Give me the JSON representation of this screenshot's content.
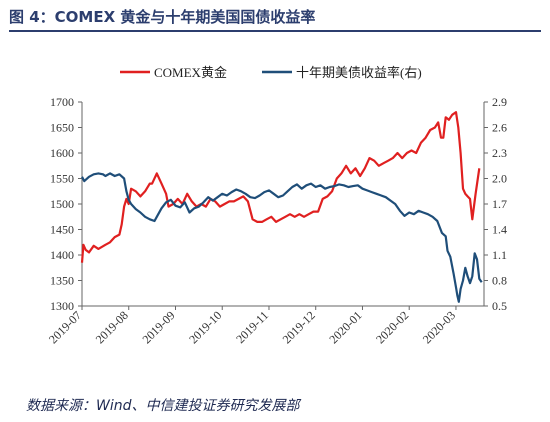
{
  "figure": {
    "title": "图 4：COMEX 黄金与十年期美国国债收益率",
    "source": "数据来源：Wind、中信建投证券研究发展部"
  },
  "colors": {
    "gold": "#e02020",
    "treasury": "#1f4e79",
    "header": "#2c3e6e"
  },
  "chart_data": {
    "type": "line",
    "legend_position": "top",
    "grid": false,
    "x_labels": [
      "2019-07",
      "2019-08",
      "2019-09",
      "2019-10",
      "2019-11",
      "2019-12",
      "2020-01",
      "2020-02",
      "2020-03"
    ],
    "y_left": {
      "ylim": [
        1300,
        1700
      ],
      "ticks": [
        1300,
        1350,
        1400,
        1450,
        1500,
        1550,
        1600,
        1650,
        1700
      ]
    },
    "y_right": {
      "ylim": [
        0.5,
        2.9
      ],
      "ticks": [
        0.5,
        0.8,
        1.1,
        1.4,
        1.7,
        2.0,
        2.3,
        2.6,
        2.9
      ]
    },
    "series": [
      {
        "name": "COMEX黄金",
        "axis": "left",
        "color": "#e02020",
        "points": [
          [
            0,
            1385
          ],
          [
            0.03,
            1420
          ],
          [
            0.08,
            1410
          ],
          [
            0.15,
            1405
          ],
          [
            0.25,
            1418
          ],
          [
            0.35,
            1412
          ],
          [
            0.5,
            1420
          ],
          [
            0.6,
            1425
          ],
          [
            0.7,
            1435
          ],
          [
            0.8,
            1440
          ],
          [
            0.85,
            1460
          ],
          [
            0.9,
            1495
          ],
          [
            0.95,
            1510
          ],
          [
            1.0,
            1500
          ],
          [
            1.05,
            1530
          ],
          [
            1.15,
            1525
          ],
          [
            1.25,
            1515
          ],
          [
            1.35,
            1525
          ],
          [
            1.45,
            1540
          ],
          [
            1.5,
            1540
          ],
          [
            1.6,
            1560
          ],
          [
            1.7,
            1540
          ],
          [
            1.8,
            1520
          ],
          [
            1.85,
            1495
          ],
          [
            1.95,
            1500
          ],
          [
            2.05,
            1510
          ],
          [
            2.15,
            1500
          ],
          [
            2.25,
            1520
          ],
          [
            2.35,
            1505
          ],
          [
            2.45,
            1495
          ],
          [
            2.55,
            1500
          ],
          [
            2.65,
            1495
          ],
          [
            2.75,
            1510
          ],
          [
            2.85,
            1505
          ],
          [
            2.95,
            1495
          ],
          [
            3.05,
            1500
          ],
          [
            3.15,
            1505
          ],
          [
            3.25,
            1505
          ],
          [
            3.35,
            1510
          ],
          [
            3.45,
            1515
          ],
          [
            3.55,
            1505
          ],
          [
            3.65,
            1470
          ],
          [
            3.75,
            1465
          ],
          [
            3.85,
            1465
          ],
          [
            3.95,
            1470
          ],
          [
            4.05,
            1475
          ],
          [
            4.15,
            1465
          ],
          [
            4.25,
            1470
          ],
          [
            4.35,
            1475
          ],
          [
            4.45,
            1480
          ],
          [
            4.55,
            1475
          ],
          [
            4.65,
            1480
          ],
          [
            4.75,
            1475
          ],
          [
            4.85,
            1480
          ],
          [
            4.95,
            1485
          ],
          [
            5.05,
            1485
          ],
          [
            5.15,
            1510
          ],
          [
            5.25,
            1515
          ],
          [
            5.35,
            1525
          ],
          [
            5.45,
            1550
          ],
          [
            5.55,
            1560
          ],
          [
            5.65,
            1575
          ],
          [
            5.75,
            1560
          ],
          [
            5.85,
            1570
          ],
          [
            5.95,
            1555
          ],
          [
            6.05,
            1570
          ],
          [
            6.15,
            1590
          ],
          [
            6.25,
            1585
          ],
          [
            6.35,
            1575
          ],
          [
            6.45,
            1580
          ],
          [
            6.55,
            1585
          ],
          [
            6.65,
            1590
          ],
          [
            6.75,
            1600
          ],
          [
            6.85,
            1590
          ],
          [
            6.95,
            1600
          ],
          [
            7.05,
            1605
          ],
          [
            7.15,
            1600
          ],
          [
            7.25,
            1620
          ],
          [
            7.35,
            1630
          ],
          [
            7.45,
            1645
          ],
          [
            7.55,
            1650
          ],
          [
            7.62,
            1660
          ],
          [
            7.68,
            1630
          ],
          [
            7.73,
            1630
          ],
          [
            7.78,
            1670
          ],
          [
            7.85,
            1665
          ],
          [
            7.92,
            1675
          ],
          [
            8.0,
            1680
          ],
          [
            8.05,
            1650
          ],
          [
            8.1,
            1600
          ],
          [
            8.15,
            1530
          ],
          [
            8.2,
            1520
          ],
          [
            8.25,
            1515
          ],
          [
            8.3,
            1510
          ],
          [
            8.35,
            1470
          ],
          [
            8.42,
            1520
          ],
          [
            8.5,
            1570
          ]
        ]
      },
      {
        "name": "十年期美债收益率(右)",
        "axis": "right",
        "color": "#1f4e79",
        "points": [
          [
            0,
            2.02
          ],
          [
            0.05,
            1.97
          ],
          [
            0.15,
            2.02
          ],
          [
            0.25,
            2.05
          ],
          [
            0.35,
            2.06
          ],
          [
            0.45,
            2.05
          ],
          [
            0.5,
            2.03
          ],
          [
            0.6,
            2.06
          ],
          [
            0.7,
            2.03
          ],
          [
            0.8,
            2.05
          ],
          [
            0.9,
            2.0
          ],
          [
            0.95,
            1.85
          ],
          [
            1.0,
            1.75
          ],
          [
            1.05,
            1.7
          ],
          [
            1.15,
            1.64
          ],
          [
            1.25,
            1.6
          ],
          [
            1.35,
            1.55
          ],
          [
            1.45,
            1.52
          ],
          [
            1.55,
            1.5
          ],
          [
            1.6,
            1.55
          ],
          [
            1.7,
            1.65
          ],
          [
            1.8,
            1.72
          ],
          [
            1.9,
            1.75
          ],
          [
            2.0,
            1.68
          ],
          [
            2.1,
            1.66
          ],
          [
            2.2,
            1.72
          ],
          [
            2.3,
            1.6
          ],
          [
            2.4,
            1.65
          ],
          [
            2.5,
            1.67
          ],
          [
            2.6,
            1.72
          ],
          [
            2.7,
            1.78
          ],
          [
            2.8,
            1.74
          ],
          [
            2.9,
            1.78
          ],
          [
            3.0,
            1.82
          ],
          [
            3.1,
            1.8
          ],
          [
            3.2,
            1.84
          ],
          [
            3.3,
            1.87
          ],
          [
            3.4,
            1.85
          ],
          [
            3.5,
            1.82
          ],
          [
            3.6,
            1.78
          ],
          [
            3.7,
            1.77
          ],
          [
            3.8,
            1.8
          ],
          [
            3.9,
            1.84
          ],
          [
            4.0,
            1.86
          ],
          [
            4.1,
            1.82
          ],
          [
            4.2,
            1.78
          ],
          [
            4.3,
            1.8
          ],
          [
            4.4,
            1.85
          ],
          [
            4.5,
            1.9
          ],
          [
            4.6,
            1.93
          ],
          [
            4.7,
            1.88
          ],
          [
            4.8,
            1.92
          ],
          [
            4.9,
            1.94
          ],
          [
            5.0,
            1.9
          ],
          [
            5.1,
            1.92
          ],
          [
            5.2,
            1.88
          ],
          [
            5.3,
            1.9
          ],
          [
            5.4,
            1.91
          ],
          [
            5.5,
            1.93
          ],
          [
            5.6,
            1.92
          ],
          [
            5.7,
            1.9
          ],
          [
            5.8,
            1.91
          ],
          [
            5.9,
            1.92
          ],
          [
            6.0,
            1.88
          ],
          [
            6.1,
            1.86
          ],
          [
            6.2,
            1.84
          ],
          [
            6.3,
            1.82
          ],
          [
            6.4,
            1.8
          ],
          [
            6.5,
            1.78
          ],
          [
            6.6,
            1.74
          ],
          [
            6.7,
            1.7
          ],
          [
            6.8,
            1.62
          ],
          [
            6.9,
            1.56
          ],
          [
            7.0,
            1.6
          ],
          [
            7.1,
            1.58
          ],
          [
            7.2,
            1.62
          ],
          [
            7.3,
            1.6
          ],
          [
            7.4,
            1.58
          ],
          [
            7.5,
            1.55
          ],
          [
            7.6,
            1.5
          ],
          [
            7.7,
            1.36
          ],
          [
            7.78,
            1.32
          ],
          [
            7.82,
            1.15
          ],
          [
            7.88,
            1.08
          ],
          [
            7.95,
            0.88
          ],
          [
            8.0,
            0.72
          ],
          [
            8.03,
            0.62
          ],
          [
            8.06,
            0.55
          ],
          [
            8.1,
            0.7
          ],
          [
            8.15,
            0.8
          ],
          [
            8.2,
            0.95
          ],
          [
            8.25,
            0.85
          ],
          [
            8.3,
            0.77
          ],
          [
            8.35,
            0.85
          ],
          [
            8.4,
            1.12
          ],
          [
            8.45,
            1.05
          ],
          [
            8.5,
            0.82
          ],
          [
            8.55,
            0.78
          ]
        ]
      }
    ]
  }
}
